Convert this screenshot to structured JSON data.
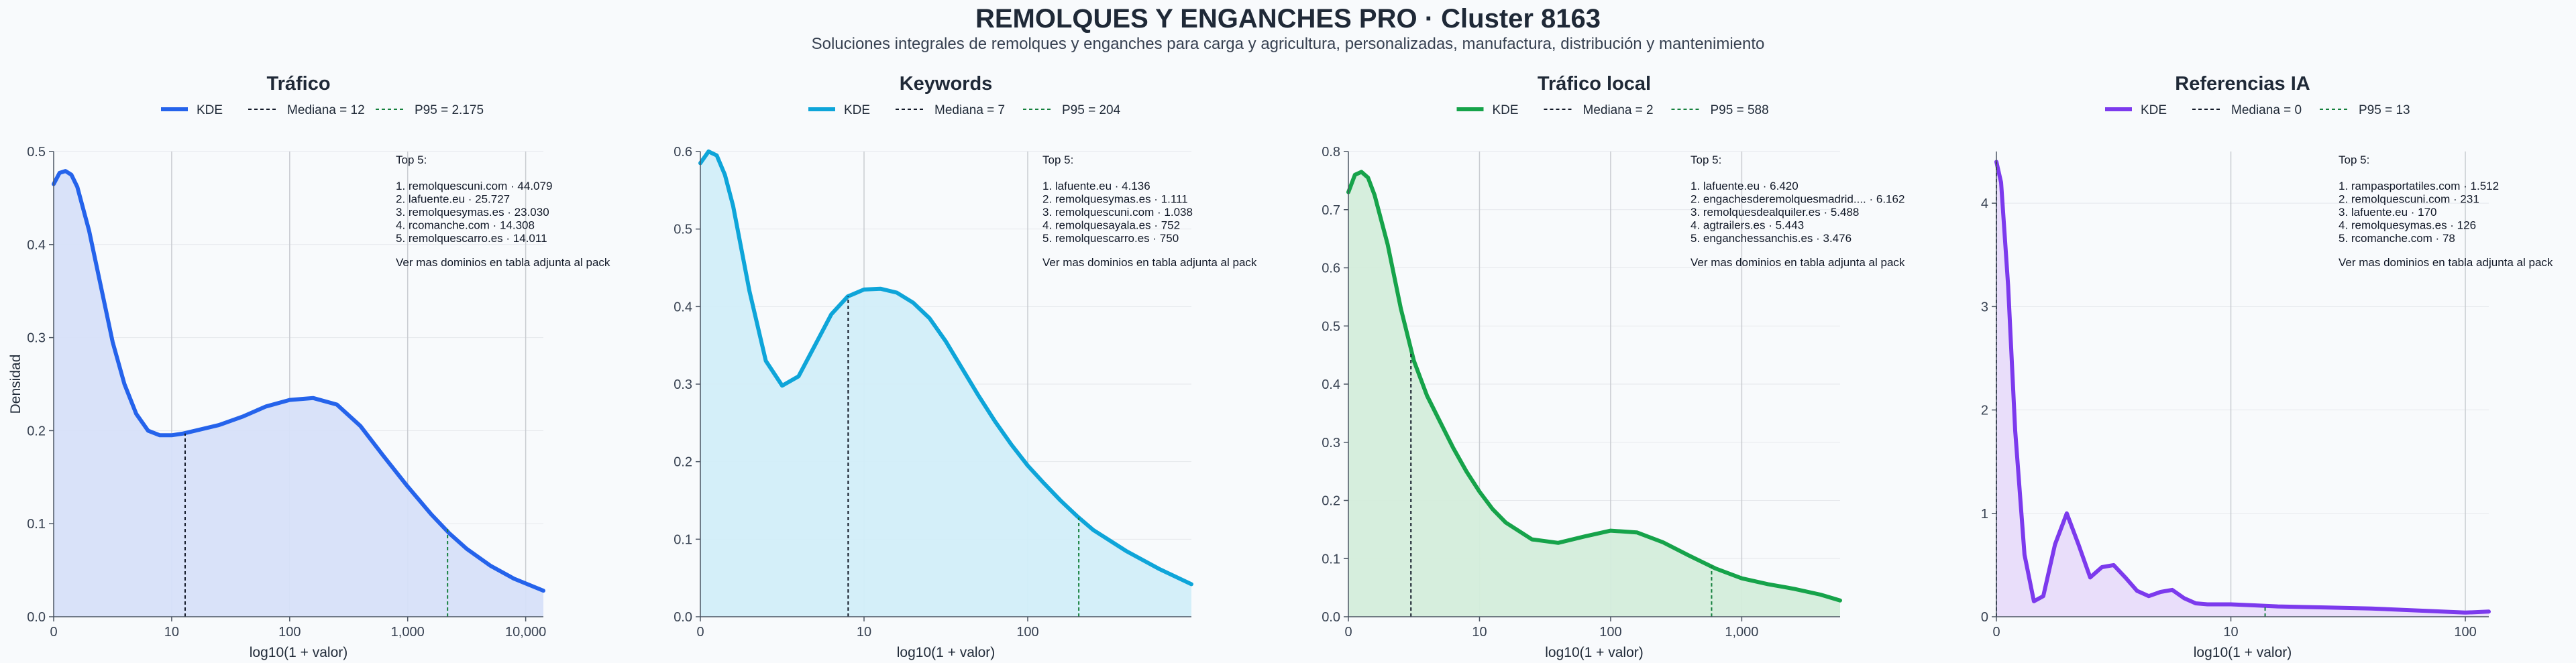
{
  "page": {
    "title": "REMOLQUES Y ENGANCHES PRO · Cluster 8163",
    "subtitle": "Soluciones integrales de remolques y enganches para carga y agricultura, personalizadas, manufactura, distribución y mantenimiento"
  },
  "chart_data": [
    {
      "type": "area",
      "title": "Tráfico",
      "color": "#2563eb",
      "fill": "#d7e0f9",
      "xlabel": "log10(1 + valor)",
      "ylabel": "Densidad",
      "x_scale": "log10(1+x)",
      "xlim": [
        0,
        4.15
      ],
      "ylim": [
        0,
        0.5
      ],
      "x_ticks": [
        {
          "pos": 0,
          "label": "0"
        },
        {
          "pos": 1,
          "label": "10"
        },
        {
          "pos": 2,
          "label": "100"
        },
        {
          "pos": 3,
          "label": "1,000"
        },
        {
          "pos": 4,
          "label": "10,000"
        }
      ],
      "y_ticks": [
        0,
        0.1,
        0.2,
        0.3,
        0.4,
        0.5
      ],
      "y_tick_labels": [
        "0.0",
        "0.1",
        "0.2",
        "0.3",
        "0.4",
        "0.5"
      ],
      "kde": {
        "x": [
          0,
          0.05,
          0.1,
          0.15,
          0.2,
          0.3,
          0.4,
          0.5,
          0.6,
          0.7,
          0.8,
          0.9,
          1.0,
          1.1,
          1.2,
          1.4,
          1.6,
          1.8,
          2.0,
          2.2,
          2.4,
          2.6,
          2.8,
          3.0,
          3.2,
          3.35,
          3.5,
          3.7,
          3.9,
          4.15
        ],
        "y": [
          0.465,
          0.477,
          0.479,
          0.475,
          0.462,
          0.415,
          0.355,
          0.295,
          0.25,
          0.218,
          0.2,
          0.195,
          0.195,
          0.197,
          0.2,
          0.206,
          0.215,
          0.226,
          0.233,
          0.235,
          0.228,
          0.205,
          0.172,
          0.14,
          0.11,
          0.09,
          0.073,
          0.055,
          0.041,
          0.028
        ]
      },
      "median": {
        "value": 12,
        "x": 1.114,
        "y": 0.197
      },
      "p95": {
        "value": 2175,
        "x": 3.338,
        "y": 0.097
      },
      "legend": {
        "kde": "KDE",
        "median": "Mediana = 12",
        "p95": "P95 = 2.175"
      },
      "top5_title": "Top 5:",
      "top5": [
        "1. remolquescuni.com · 44.079",
        "2. lafuente.eu · 25.727",
        "3. remolquesymas.es · 23.030",
        "4. rcomanche.com · 14.308",
        "5. remolquescarro.es · 14.011"
      ],
      "top5_footer": "Ver mas dominios en tabla adjunta al pack"
    },
    {
      "type": "area",
      "title": "Keywords",
      "color": "#0ea5d9",
      "fill": "#d2eef9",
      "xlabel": "log10(1 + valor)",
      "ylabel": "",
      "x_scale": "log10(1+x)",
      "xlim": [
        0,
        3.0
      ],
      "ylim": [
        0,
        0.6
      ],
      "x_ticks": [
        {
          "pos": 0,
          "label": "0"
        },
        {
          "pos": 1,
          "label": "10"
        },
        {
          "pos": 2,
          "label": "100"
        }
      ],
      "y_ticks": [
        0,
        0.1,
        0.2,
        0.3,
        0.4,
        0.5,
        0.6
      ],
      "y_tick_labels": [
        "0.0",
        "0.1",
        "0.2",
        "0.3",
        "0.4",
        "0.5",
        "0.6"
      ],
      "kde": {
        "x": [
          0,
          0.05,
          0.1,
          0.15,
          0.2,
          0.3,
          0.4,
          0.5,
          0.6,
          0.7,
          0.8,
          0.9,
          1.0,
          1.1,
          1.2,
          1.3,
          1.4,
          1.5,
          1.6,
          1.7,
          1.8,
          1.9,
          2.0,
          2.1,
          2.2,
          2.3,
          2.4,
          2.6,
          2.8,
          3.0
        ],
        "y": [
          0.585,
          0.6,
          0.595,
          0.57,
          0.53,
          0.42,
          0.33,
          0.298,
          0.31,
          0.35,
          0.39,
          0.413,
          0.422,
          0.423,
          0.418,
          0.405,
          0.385,
          0.355,
          0.32,
          0.285,
          0.252,
          0.222,
          0.195,
          0.172,
          0.15,
          0.13,
          0.112,
          0.085,
          0.062,
          0.042
        ]
      },
      "median": {
        "value": 7,
        "x": 0.903,
        "y": 0.413
      },
      "p95": {
        "value": 204,
        "x": 2.312,
        "y": 0.128
      },
      "legend": {
        "kde": "KDE",
        "median": "Mediana = 7",
        "p95": "P95 = 204"
      },
      "top5_title": "Top 5:",
      "top5": [
        "1. lafuente.eu · 4.136",
        "2. remolquesymas.es · 1.111",
        "3. remolquescuni.com · 1.038",
        "4. remolquesayala.es · 752",
        "5. remolquescarro.es · 750"
      ],
      "top5_footer": "Ver mas dominios en tabla adjunta al pack"
    },
    {
      "type": "area",
      "title": "Tráfico local",
      "color": "#16a34a",
      "fill": "#d4eddb",
      "xlabel": "log10(1 + valor)",
      "ylabel": "",
      "x_scale": "log10(1+x)",
      "xlim": [
        0,
        3.75
      ],
      "ylim": [
        0,
        0.8
      ],
      "x_ticks": [
        {
          "pos": 0,
          "label": "0"
        },
        {
          "pos": 1,
          "label": "10"
        },
        {
          "pos": 2,
          "label": "100"
        },
        {
          "pos": 3,
          "label": "1,000"
        }
      ],
      "y_ticks": [
        0,
        0.1,
        0.2,
        0.3,
        0.4,
        0.5,
        0.6,
        0.7,
        0.8
      ],
      "y_tick_labels": [
        "0.0",
        "0.1",
        "0.2",
        "0.3",
        "0.4",
        "0.5",
        "0.6",
        "0.7",
        "0.8"
      ],
      "kde": {
        "x": [
          0,
          0.05,
          0.1,
          0.15,
          0.2,
          0.3,
          0.4,
          0.5,
          0.6,
          0.7,
          0.8,
          0.9,
          1.0,
          1.1,
          1.2,
          1.4,
          1.6,
          1.8,
          2.0,
          2.2,
          2.4,
          2.6,
          2.8,
          3.0,
          3.2,
          3.4,
          3.6,
          3.75
        ],
        "y": [
          0.73,
          0.76,
          0.765,
          0.755,
          0.725,
          0.64,
          0.53,
          0.44,
          0.38,
          0.335,
          0.29,
          0.25,
          0.215,
          0.185,
          0.162,
          0.133,
          0.127,
          0.138,
          0.148,
          0.145,
          0.128,
          0.105,
          0.083,
          0.066,
          0.056,
          0.048,
          0.038,
          0.028
        ]
      },
      "median": {
        "value": 2,
        "x": 0.477,
        "y": 0.455
      },
      "p95": {
        "value": 588,
        "x": 2.77,
        "y": 0.088
      },
      "legend": {
        "kde": "KDE",
        "median": "Mediana = 2",
        "p95": "P95 = 588"
      },
      "top5_title": "Top 5:",
      "top5": [
        "1. lafuente.eu · 6.420",
        "2. engachesderemolquesmadrid.... · 6.162",
        "3. remolquesdealquiler.es · 5.488",
        "4. agtrailers.es · 5.443",
        "5. enganchessanchis.es · 3.476"
      ],
      "top5_footer": "Ver mas dominios en tabla adjunta al pack"
    },
    {
      "type": "area",
      "title": "Referencias IA",
      "color": "#7c3aed",
      "fill": "#e8dcfa",
      "xlabel": "log10(1 + valor)",
      "ylabel": "",
      "x_scale": "log10(1+x)",
      "xlim": [
        0,
        2.1
      ],
      "ylim": [
        0,
        4.5
      ],
      "x_ticks": [
        {
          "pos": 0,
          "label": "0"
        },
        {
          "pos": 1,
          "label": "10"
        },
        {
          "pos": 2,
          "label": "100"
        }
      ],
      "y_ticks": [
        0,
        1,
        2,
        3,
        4
      ],
      "y_tick_labels": [
        "0",
        "1",
        "2",
        "3",
        "4"
      ],
      "kde": {
        "x": [
          0,
          0.02,
          0.05,
          0.08,
          0.12,
          0.16,
          0.2,
          0.25,
          0.3,
          0.35,
          0.4,
          0.45,
          0.5,
          0.55,
          0.6,
          0.65,
          0.7,
          0.75,
          0.8,
          0.85,
          0.9,
          1.0,
          1.1,
          1.2,
          1.4,
          1.6,
          1.8,
          2.0,
          2.1
        ],
        "y": [
          4.4,
          4.2,
          3.2,
          1.8,
          0.6,
          0.15,
          0.2,
          0.7,
          1.0,
          0.7,
          0.38,
          0.48,
          0.5,
          0.38,
          0.25,
          0.2,
          0.24,
          0.26,
          0.18,
          0.13,
          0.12,
          0.12,
          0.11,
          0.1,
          0.09,
          0.08,
          0.06,
          0.04,
          0.05
        ]
      },
      "median": {
        "value": 0,
        "x": 0.0,
        "y": 4.4
      },
      "p95": {
        "value": 13,
        "x": 1.146,
        "y": 0.11
      },
      "legend": {
        "kde": "KDE",
        "median": "Mediana = 0",
        "p95": "P95 = 13"
      },
      "top5_title": "Top 5:",
      "top5": [
        "1. rampasportatiles.com · 1.512",
        "2. remolquescuni.com · 231",
        "3. lafuente.eu · 170",
        "4. remolquesymas.es · 126",
        "5. rcomanche.com · 78"
      ],
      "top5_footer": "Ver mas dominios en tabla adjunta al pack"
    }
  ]
}
